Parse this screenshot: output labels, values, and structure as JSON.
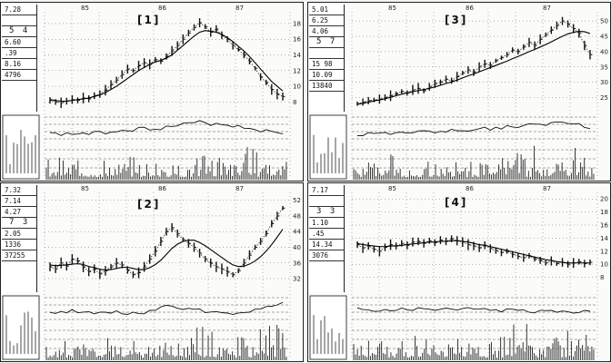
{
  "chart_data": [
    {
      "type": "candlestick",
      "title": "[1]",
      "top_axis": [
        "85",
        "86",
        "87"
      ],
      "info_box": [
        "7.28",
        "",
        "5 4",
        "6.60",
        ".39",
        "8.16",
        "4796"
      ],
      "yticks": [
        18,
        16,
        14,
        12,
        10,
        8
      ],
      "ylim": [
        7,
        19.5
      ],
      "close": [
        8.2,
        8.0,
        7.9,
        8.1,
        8.3,
        8.2,
        8.5,
        8.4,
        8.8,
        9.0,
        9.5,
        10.2,
        10.8,
        11.5,
        12.2,
        12.0,
        12.6,
        13.0,
        12.8,
        13.4,
        13.2,
        13.8,
        14.5,
        15.2,
        16.0,
        16.8,
        17.5,
        18.1,
        17.6,
        16.9,
        17.3,
        16.5,
        16.0,
        15.2,
        14.7,
        14.0,
        13.2,
        12.3,
        11.2,
        10.5,
        9.6,
        9.0,
        8.7
      ],
      "ma": [
        8.3,
        8.2,
        8.1,
        8.1,
        8.2,
        8.3,
        8.4,
        8.5,
        8.7,
        8.9,
        9.2,
        9.6,
        10.0,
        10.5,
        11.0,
        11.5,
        12.0,
        12.4,
        12.8,
        13.1,
        13.3,
        13.6,
        14.0,
        14.6,
        15.2,
        15.8,
        16.4,
        16.9,
        17.1,
        17.0,
        16.9,
        16.6,
        16.2,
        15.7,
        15.1,
        14.5,
        13.8,
        13.0,
        12.2,
        11.4,
        10.6,
        10.0,
        9.4
      ]
    },
    {
      "type": "candlestick",
      "title": "[3]",
      "top_axis": [
        "85",
        "86",
        "87"
      ],
      "info_box": [
        "5.01",
        "6.25",
        "4.06",
        "5 7",
        "",
        "15 98",
        "10.09",
        "13840"
      ],
      "yticks": [
        50,
        45,
        40,
        35,
        30,
        25
      ],
      "ylim": [
        21,
        53
      ],
      "close": [
        23,
        23.5,
        24,
        24.2,
        24.5,
        25,
        25.6,
        26.2,
        27,
        26.5,
        27.5,
        28,
        27.2,
        28.5,
        29.5,
        30,
        31,
        30.5,
        31.8,
        33,
        34,
        33.2,
        35,
        36,
        35.5,
        37,
        38,
        39,
        40.5,
        40,
        41.5,
        43,
        42,
        44,
        45.5,
        47,
        48.5,
        50,
        49,
        47.5,
        46,
        42,
        39
      ],
      "ma": [
        22.8,
        23.1,
        23.5,
        23.9,
        24.2,
        24.6,
        25.1,
        25.6,
        26.1,
        26.5,
        26.9,
        27.3,
        27.6,
        28.0,
        28.5,
        29.0,
        29.6,
        30.1,
        30.7,
        31.4,
        32.1,
        32.7,
        33.4,
        34.1,
        34.8,
        35.5,
        36.2,
        36.9,
        37.7,
        38.4,
        39.2,
        40.0,
        40.7,
        41.5,
        42.3,
        43.2,
        44.1,
        45.0,
        45.8,
        46.3,
        46.6,
        46.5,
        45.9
      ]
    },
    {
      "type": "candlestick",
      "title": "[2]",
      "top_axis": [
        "85",
        "86",
        "87"
      ],
      "info_box": [
        "7.32",
        "7.14",
        "4.27",
        "7 3",
        "2.05",
        "1336",
        "37255"
      ],
      "yticks": [
        52,
        48,
        44,
        40,
        36,
        32
      ],
      "ylim": [
        29,
        54
      ],
      "close": [
        35,
        34.5,
        36,
        35.2,
        37,
        36.5,
        35,
        33.8,
        34.5,
        33.2,
        34,
        35,
        36,
        35.5,
        34.2,
        33,
        33.5,
        35,
        37,
        39,
        41.5,
        44,
        45,
        43.5,
        42,
        41,
        40,
        38.5,
        37,
        36,
        35,
        34.5,
        33.8,
        33,
        34,
        36,
        38,
        40,
        41.5,
        43.5,
        46,
        48,
        50
      ],
      "ma": [
        35.5,
        35.3,
        35.4,
        35.5,
        35.7,
        35.8,
        35.6,
        35.1,
        34.8,
        34.4,
        34.2,
        34.3,
        34.6,
        34.9,
        34.9,
        34.6,
        34.3,
        34.3,
        34.8,
        35.6,
        36.7,
        38.2,
        39.7,
        40.8,
        41.5,
        41.8,
        41.8,
        41.2,
        40.4,
        39.4,
        38.4,
        37.4,
        36.4,
        35.5,
        35.1,
        35.2,
        35.7,
        36.5,
        37.6,
        39.0,
        40.7,
        42.6,
        44.6
      ]
    },
    {
      "type": "candlestick",
      "title": "[4]",
      "top_axis": [
        "85",
        "86",
        "87"
      ],
      "info_box": [
        "7.17",
        "",
        "3 3",
        "1.10",
        ".45",
        "14.34",
        "3076"
      ],
      "yticks": [
        20,
        18,
        16,
        14,
        12,
        10,
        8
      ],
      "ylim": [
        6,
        21
      ],
      "close": [
        13,
        12.5,
        12.8,
        12.3,
        12,
        12.6,
        13,
        12.8,
        13.2,
        12.9,
        13.4,
        13.5,
        13.2,
        13.6,
        13.3,
        13.7,
        13.5,
        13.9,
        13.6,
        13.4,
        13.0,
        12.8,
        12.5,
        12.9,
        12.4,
        12.1,
        11.8,
        12.0,
        11.5,
        11.2,
        11.0,
        11.3,
        10.8,
        10.6,
        10.2,
        10.5,
        10.1,
        10.3,
        10.0,
        10.2,
        10.4,
        10.1,
        10.3
      ],
      "ma": [
        13.2,
        13.0,
        12.9,
        12.8,
        12.7,
        12.7,
        12.8,
        12.8,
        12.9,
        13.0,
        13.1,
        13.2,
        13.3,
        13.4,
        13.4,
        13.5,
        13.5,
        13.6,
        13.6,
        13.5,
        13.4,
        13.2,
        13.0,
        12.9,
        12.7,
        12.5,
        12.3,
        12.1,
        11.9,
        11.7,
        11.5,
        11.3,
        11.1,
        10.9,
        10.7,
        10.6,
        10.4,
        10.3,
        10.2,
        10.2,
        10.2,
        10.2,
        10.2
      ]
    }
  ]
}
